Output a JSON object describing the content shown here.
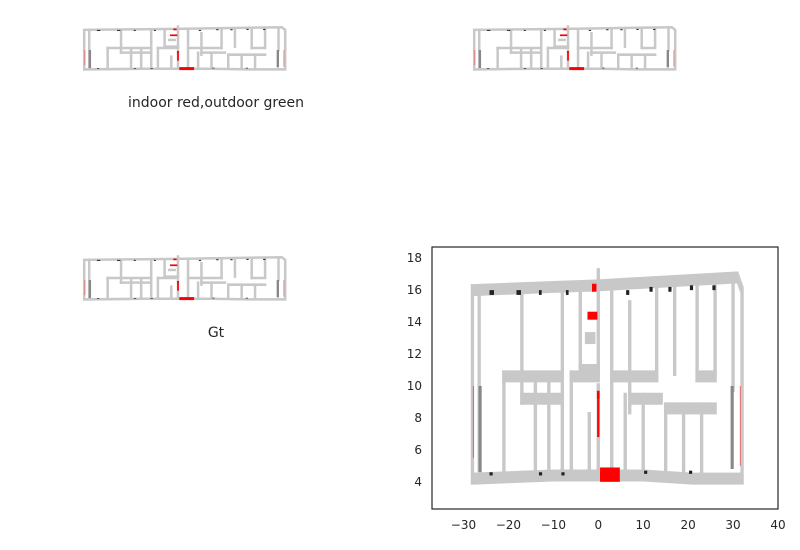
{
  "chart_data": [
    {
      "type": "scatter",
      "title": "indoor red,outdoor green",
      "axes_visible": false,
      "series_colors": {
        "walls": "#c8c8c8",
        "indoor": "#ff0000",
        "outdoor": "#00aa00",
        "pillars": "#888888"
      }
    },
    {
      "type": "scatter",
      "title": "",
      "axes_visible": false,
      "series_colors": {
        "walls": "#c8c8c8",
        "indoor": "#ff0000",
        "pillars": "#888888"
      }
    },
    {
      "type": "scatter",
      "title": "Gt",
      "axes_visible": false,
      "series_colors": {
        "walls": "#c8c8c8",
        "indoor": "#ff0000",
        "pillars": "#888888"
      }
    },
    {
      "type": "scatter",
      "title": "",
      "axes_visible": true,
      "xlim": [
        -37,
        40
      ],
      "ylim": [
        2.3,
        18.7
      ],
      "xticks": [
        "−30",
        "−20",
        "−10",
        "0",
        "10",
        "20",
        "30",
        "40"
      ],
      "yticks": [
        "4",
        "6",
        "8",
        "10",
        "12",
        "14",
        "16",
        "18"
      ],
      "grid": false,
      "series_colors": {
        "walls": "#c8c8c8",
        "indoor": "#ff0000",
        "pillars": "#888888",
        "markers": "#222222"
      }
    }
  ]
}
